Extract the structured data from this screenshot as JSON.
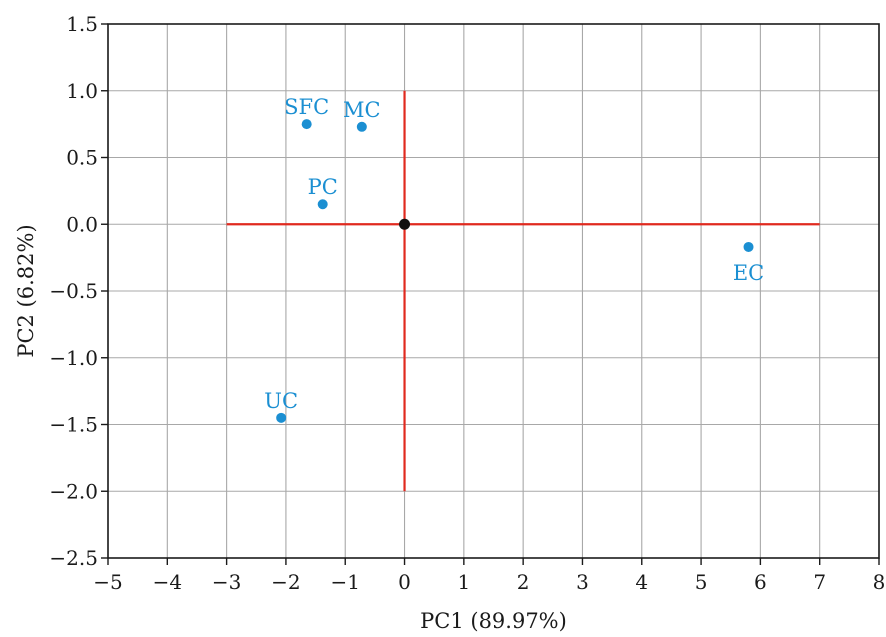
{
  "colors": {
    "point": "#1b8fd2",
    "crosshair": "#e02a1f",
    "origin": "#111111",
    "grid": "#a8a8a8",
    "frame": "#1a1a1a"
  },
  "chart_data": {
    "type": "scatter",
    "xlabel": "PC1 (89.97%)",
    "ylabel": "PC2 (6.82%)",
    "xlim": [
      -5,
      8
    ],
    "ylim": [
      -2.5,
      1.5
    ],
    "x_ticks": [
      -5,
      -4,
      -3,
      -2,
      -1,
      0,
      1,
      2,
      3,
      4,
      5,
      6,
      7,
      8
    ],
    "y_ticks": [
      1.5,
      1.0,
      0.5,
      0.0,
      -0.5,
      -1.0,
      -1.5,
      -2.0,
      -2.5
    ],
    "x_tick_labels": [
      "−5",
      "−4",
      "−3",
      "−2",
      "−1",
      "0",
      "1",
      "2",
      "3",
      "4",
      "5",
      "6",
      "7",
      "8"
    ],
    "y_tick_labels": [
      "1.5",
      "1.0",
      "0.5",
      "0.0",
      "−0.5",
      "−1.0",
      "−1.5",
      "−2.0",
      "−2.5"
    ],
    "grid": true,
    "points": [
      {
        "label": "SFC",
        "x": -1.65,
        "y": 0.75,
        "label_position": "above"
      },
      {
        "label": "MC",
        "x": -0.72,
        "y": 0.73,
        "label_position": "above"
      },
      {
        "label": "PC",
        "x": -1.38,
        "y": 0.15,
        "label_position": "above"
      },
      {
        "label": "EC",
        "x": 5.8,
        "y": -0.17,
        "label_position": "below"
      },
      {
        "label": "UC",
        "x": -2.08,
        "y": -1.45,
        "label_position": "above"
      }
    ],
    "crosshair": {
      "horizontal": {
        "y": 0,
        "x_from": -3,
        "x_to": 7
      },
      "vertical": {
        "x": 0,
        "y_from": -2,
        "y_to": 1
      }
    },
    "origin_marker": {
      "x": 0,
      "y": 0
    }
  }
}
